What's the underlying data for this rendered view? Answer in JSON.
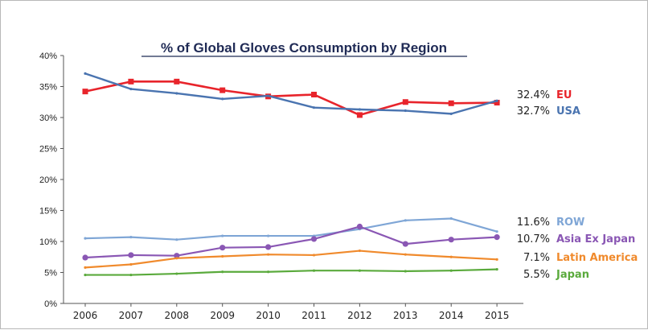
{
  "chart_data": {
    "type": "line",
    "title": "% of Global Gloves Consumption by Region",
    "xlabel": "",
    "ylabel": "",
    "x": [
      "2006",
      "2007",
      "2008",
      "2009",
      "2010",
      "2011",
      "2012",
      "2013",
      "2014",
      "2015"
    ],
    "y_ticks": [
      "0%",
      "5%",
      "10%",
      "15%",
      "20%",
      "25%",
      "30%",
      "35%",
      "40%"
    ],
    "ylim": [
      0,
      40
    ],
    "grid": false,
    "legend": "direct labels at right end of lines",
    "series": [
      {
        "name": "EU",
        "end_label": "32.4%",
        "color": "#e8242b",
        "marker": "square",
        "values": [
          34.2,
          35.8,
          35.8,
          34.4,
          33.4,
          33.7,
          30.4,
          32.5,
          32.3,
          32.4
        ]
      },
      {
        "name": "USA",
        "end_label": "32.7%",
        "color": "#4a74b0",
        "marker": "none",
        "values": [
          37.1,
          34.6,
          33.9,
          33.0,
          33.5,
          31.6,
          31.3,
          31.1,
          30.6,
          32.7
        ]
      },
      {
        "name": "ROW",
        "end_label": "11.6%",
        "color": "#7fa6d6",
        "marker": "none",
        "values": [
          10.5,
          10.7,
          10.3,
          10.9,
          10.9,
          10.9,
          12.0,
          13.4,
          13.7,
          11.6
        ]
      },
      {
        "name": "Asia Ex Japan",
        "end_label": "10.7%",
        "color": "#8a57b4",
        "marker": "circle",
        "values": [
          7.4,
          7.8,
          7.7,
          9.0,
          9.1,
          10.4,
          12.4,
          9.6,
          10.3,
          10.7
        ]
      },
      {
        "name": "Latin America",
        "end_label": "7.1%",
        "color": "#f08a2c",
        "marker": "none",
        "values": [
          5.8,
          6.3,
          7.3,
          7.6,
          7.9,
          7.8,
          8.5,
          7.9,
          7.5,
          7.1
        ]
      },
      {
        "name": "Japan",
        "end_label": "5.5%",
        "color": "#5aaa3c",
        "marker": "none",
        "values": [
          4.6,
          4.6,
          4.8,
          5.1,
          5.1,
          5.3,
          5.3,
          5.2,
          5.3,
          5.5
        ]
      }
    ]
  }
}
